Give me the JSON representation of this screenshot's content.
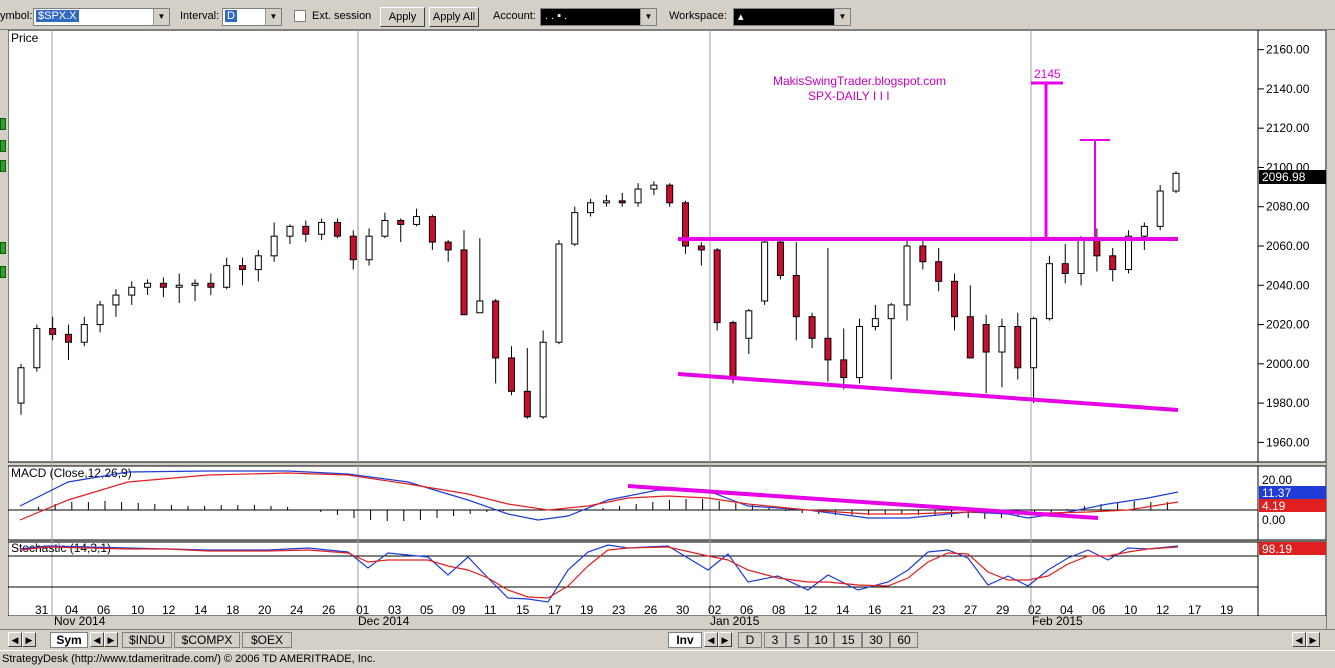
{
  "toolbar": {
    "symbol_label": "ymbol:",
    "symbol_value": "$SPX.X",
    "interval_label": "Interval:",
    "interval_value": "D",
    "ext_session_label": "Ext. session",
    "apply_label": "Apply",
    "apply_all_label": "Apply All",
    "account_label": "Account:",
    "account_value": ". . ▪ .",
    "workspace_label": "Workspace:",
    "workspace_value": "▴"
  },
  "price_panel": {
    "title": "Price",
    "annotation_line1": "MakisSwingTrader.blogspot.com",
    "annotation_line2": "SPX-DAILY  I I I",
    "target_label": "2145",
    "last_price": "2096.98",
    "axis_ticks": [
      "2160.00",
      "2140.00",
      "2120.00",
      "2100.00",
      "2080.00",
      "2060.00",
      "2040.00",
      "2020.00",
      "2000.00",
      "1980.00",
      "1960.00"
    ]
  },
  "macd_panel": {
    "title": "MACD (Close,12,26,9)",
    "axis_top": "20.00",
    "value_macd": "11.37",
    "value_signal": "4.19",
    "axis_bottom": "0.00"
  },
  "stoch_panel": {
    "title": "Stochastic (14,3,1)",
    "value": "98.19"
  },
  "x_axis": {
    "day_labels": [
      "31",
      "04",
      "06",
      "10",
      "12",
      "14",
      "18",
      "20",
      "24",
      "26",
      "01",
      "03",
      "05",
      "09",
      "11",
      "15",
      "17",
      "19",
      "23",
      "26",
      "30",
      "02",
      "06",
      "08",
      "12",
      "14",
      "16",
      "21",
      "23",
      "27",
      "29",
      "02",
      "04",
      "06",
      "10",
      "12",
      "17",
      "19"
    ],
    "month_labels": [
      "Nov 2014",
      "Dec 2014",
      "Jan 2015",
      "Feb 2015"
    ]
  },
  "bottom_bar": {
    "sym_tab": "Sym",
    "symbol_tabs": [
      "$INDU",
      "$COMPX",
      "$OEX"
    ],
    "inv_tab": "Inv",
    "interval_tabs": [
      "D",
      "3",
      "5",
      "10",
      "15",
      "30",
      "60"
    ]
  },
  "status_text": "StrategyDesk (http://www.tdameritrade.com/) © 2006 TD AMERITRADE, Inc.",
  "colors": {
    "annotation": "#e600e6",
    "up_candle": "#ffffff",
    "down_candle": "#c8102e",
    "macd_line": "#1f3bd8",
    "signal_line": "#e02020"
  },
  "chart_data": {
    "type": "candlestick",
    "ylim": [
      1950,
      2170
    ],
    "series": [
      {
        "name": "ohlc",
        "values": [
          [
            1980,
            2000,
            1974,
            1998
          ],
          [
            1998,
            2020,
            1996,
            2018
          ],
          [
            2018,
            2024,
            2012,
            2015
          ],
          [
            2015,
            2020,
            2002,
            2011
          ],
          [
            2011,
            2024,
            2009,
            2020
          ],
          [
            2020,
            2032,
            2016,
            2030
          ],
          [
            2030,
            2038,
            2024,
            2035
          ],
          [
            2035,
            2042,
            2030,
            2039
          ],
          [
            2039,
            2043,
            2035,
            2041
          ],
          [
            2041,
            2044,
            2034,
            2039
          ],
          [
            2039,
            2046,
            2031,
            2040
          ],
          [
            2040,
            2043,
            2032,
            2041
          ],
          [
            2041,
            2046,
            2035,
            2039
          ],
          [
            2039,
            2054,
            2038,
            2050
          ],
          [
            2050,
            2054,
            2040,
            2048
          ],
          [
            2048,
            2058,
            2042,
            2055
          ],
          [
            2055,
            2072,
            2052,
            2065
          ],
          [
            2065,
            2071,
            2061,
            2070
          ],
          [
            2070,
            2073,
            2062,
            2066
          ],
          [
            2066,
            2074,
            2063,
            2072
          ],
          [
            2072,
            2074,
            2064,
            2065
          ],
          [
            2065,
            2068,
            2048,
            2053
          ],
          [
            2053,
            2069,
            2050,
            2065
          ],
          [
            2065,
            2077,
            2064,
            2073
          ],
          [
            2073,
            2074,
            2062,
            2071
          ],
          [
            2071,
            2079,
            2070,
            2075
          ],
          [
            2075,
            2076,
            2058,
            2062
          ],
          [
            2062,
            2063,
            2052,
            2058
          ],
          [
            2058,
            2068,
            2025,
            2025
          ],
          [
            2026,
            2064,
            2026,
            2032
          ],
          [
            2032,
            2033,
            1990,
            2003
          ],
          [
            2003,
            2009,
            1984,
            1986
          ],
          [
            1986,
            2008,
            1972,
            1973
          ],
          [
            1973,
            2017,
            1972,
            2011
          ],
          [
            2011,
            2063,
            2010,
            2061
          ],
          [
            2061,
            2080,
            2060,
            2077
          ],
          [
            2077,
            2084,
            2075,
            2082
          ],
          [
            2082,
            2086,
            2080,
            2083
          ],
          [
            2083,
            2087,
            2080,
            2082
          ],
          [
            2082,
            2092,
            2080,
            2089
          ],
          [
            2089,
            2093,
            2086,
            2091
          ],
          [
            2091,
            2092,
            2080,
            2082
          ],
          [
            2082,
            2083,
            2056,
            2060
          ],
          [
            2060,
            2062,
            2050,
            2058
          ],
          [
            2058,
            2059,
            2017,
            2021
          ],
          [
            2021,
            2022,
            1990,
            1993
          ],
          [
            2013,
            2028,
            2005,
            2027
          ],
          [
            2032,
            2064,
            2030,
            2062
          ],
          [
            2062,
            2063,
            2043,
            2045
          ],
          [
            2045,
            2062,
            2012,
            2024
          ],
          [
            2024,
            2026,
            2008,
            2013
          ],
          [
            2013,
            2059,
            1991,
            2002
          ],
          [
            2002,
            2018,
            1987,
            1993
          ],
          [
            1993,
            2023,
            1990,
            2019
          ],
          [
            2019,
            2030,
            2017,
            2023
          ],
          [
            2023,
            2031,
            1992,
            2030
          ],
          [
            2030,
            2063,
            2022,
            2060
          ],
          [
            2060,
            2064,
            2048,
            2052
          ],
          [
            2052,
            2059,
            2037,
            2042
          ],
          [
            2042,
            2046,
            2017,
            2024
          ],
          [
            2024,
            2040,
            2020,
            2003
          ],
          [
            2020,
            2025,
            1985,
            2006
          ],
          [
            2006,
            2023,
            1988,
            2019
          ],
          [
            2019,
            2026,
            1992,
            1998
          ],
          [
            1998,
            2024,
            1980,
            2023
          ],
          [
            2023,
            2055,
            2022,
            2051
          ],
          [
            2051,
            2061,
            2041,
            2046
          ],
          [
            2046,
            2065,
            2040,
            2064
          ],
          [
            2064,
            2069,
            2047,
            2055
          ],
          [
            2055,
            2059,
            2042,
            2048
          ],
          [
            2048,
            2068,
            2046,
            2065
          ],
          [
            2065,
            2072,
            2058,
            2070
          ],
          [
            2070,
            2091,
            2068,
            2088
          ],
          [
            2088,
            2098,
            2087,
            2097
          ]
        ]
      }
    ]
  }
}
